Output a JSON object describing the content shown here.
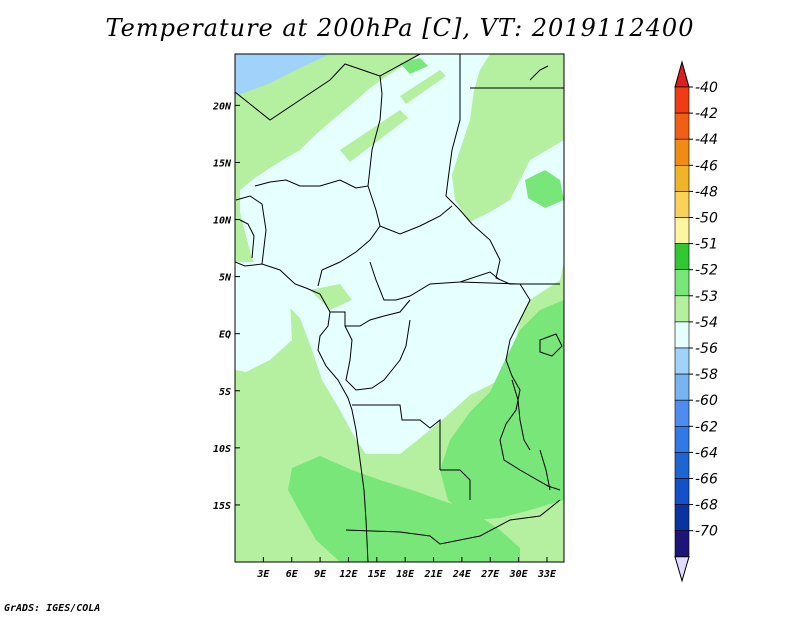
{
  "title": "Temperature at 200hPa [C], VT: 2019112400",
  "credit": "GrADS: IGES/COLA",
  "chart_data": {
    "type": "map",
    "title": "Temperature at 200hPa [C], VT: 2019112400",
    "lon_range": [
      0,
      34.8
    ],
    "lat_range": [
      -20.0,
      24.5
    ],
    "x_ticks": [
      {
        "value": 3,
        "label": "3E"
      },
      {
        "value": 6,
        "label": "6E"
      },
      {
        "value": 9,
        "label": "9E"
      },
      {
        "value": 12,
        "label": "12E"
      },
      {
        "value": 15,
        "label": "15E"
      },
      {
        "value": 18,
        "label": "18E"
      },
      {
        "value": 21,
        "label": "21E"
      },
      {
        "value": 24,
        "label": "24E"
      },
      {
        "value": 27,
        "label": "27E"
      },
      {
        "value": 30,
        "label": "30E"
      },
      {
        "value": 33,
        "label": "33E"
      }
    ],
    "y_ticks": [
      {
        "value": 20,
        "label": "20N"
      },
      {
        "value": 15,
        "label": "15N"
      },
      {
        "value": 10,
        "label": "10N"
      },
      {
        "value": 5,
        "label": "5N"
      },
      {
        "value": 0,
        "label": "EQ"
      },
      {
        "value": -5,
        "label": "5S"
      },
      {
        "value": -10,
        "label": "10S"
      },
      {
        "value": -15,
        "label": "15S"
      }
    ],
    "colorbar": {
      "labels": [
        "-40",
        "-42",
        "-44",
        "-46",
        "-48",
        "-50",
        "-51",
        "-52",
        "-53",
        "-54",
        "-56",
        "-58",
        "-60",
        "-62",
        "-64",
        "-66",
        "-68",
        "-70"
      ],
      "colors": [
        "#dc1e1e",
        "#f03c14",
        "#f06014",
        "#f08c14",
        "#f0b428",
        "#fad25a",
        "#fff5a0",
        "#32c832",
        "#78e678",
        "#b4f0a0",
        "#e6ffff",
        "#a0d2fa",
        "#78b4f0",
        "#508cf0",
        "#3278e6",
        "#1e64d2",
        "#1450c8",
        "#0a32a0",
        "#1e1478",
        "#e1dcff"
      ]
    },
    "fields": {
      "ocean_color": "#a0d2fa",
      "dominant_colors": [
        "#e6ffff",
        "#b4f0a0",
        "#78e678"
      ]
    }
  }
}
